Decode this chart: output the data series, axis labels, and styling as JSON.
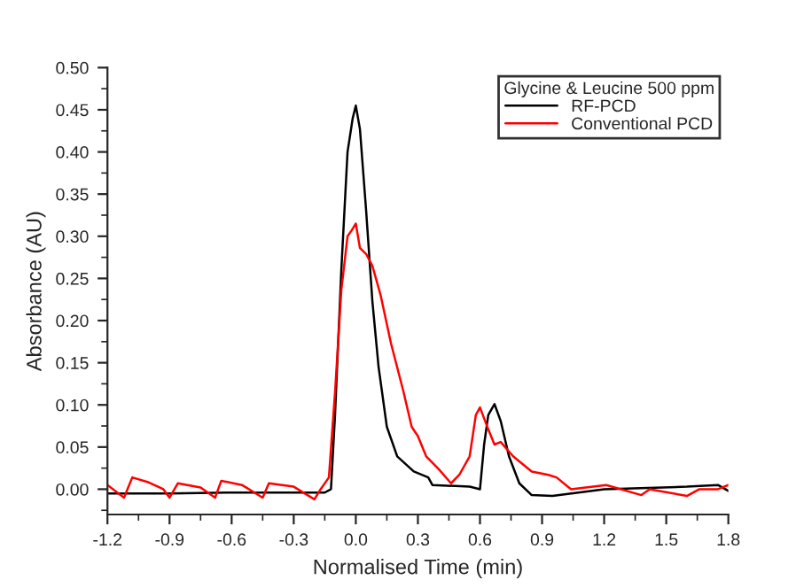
{
  "chart_data": {
    "type": "line",
    "xlabel": "Normalised Time (min)",
    "ylabel": "Absorbance (AU)",
    "legend_title": "Glycine & Leucine 500 ppm",
    "legend": "top right",
    "grid": false,
    "xlim": [
      -1.2,
      1.8
    ],
    "ylim": [
      -0.03,
      0.5
    ],
    "xticks": [
      {
        "value": -1.2,
        "label": "-1.2"
      },
      {
        "value": -0.9,
        "label": "-0.9"
      },
      {
        "value": -0.6,
        "label": "-0.6"
      },
      {
        "value": -0.3,
        "label": "-0.3"
      },
      {
        "value": 0,
        "label": "0.0"
      },
      {
        "value": 0.3,
        "label": "0.3"
      },
      {
        "value": 0.6,
        "label": "0.6"
      },
      {
        "value": 0.9,
        "label": "0.9"
      },
      {
        "value": 1.2,
        "label": "1.2"
      },
      {
        "value": 1.5,
        "label": "1.5"
      },
      {
        "value": 1.8,
        "label": "1.8"
      }
    ],
    "yticks": [
      {
        "value": 0,
        "label": "0.00"
      },
      {
        "value": 0.05,
        "label": "0.05"
      },
      {
        "value": 0.1,
        "label": "0.10"
      },
      {
        "value": 0.15,
        "label": "0.15"
      },
      {
        "value": 0.2,
        "label": "0.20"
      },
      {
        "value": 0.25,
        "label": "0.25"
      },
      {
        "value": 0.3,
        "label": "0.30"
      },
      {
        "value": 0.35,
        "label": "0.35"
      },
      {
        "value": 0.4,
        "label": "0.40"
      },
      {
        "value": 0.45,
        "label": "0.45"
      },
      {
        "value": 0.5,
        "label": "0.50"
      }
    ],
    "series": [
      {
        "name": "RF-PCD",
        "color": "#000000",
        "x": [
          -1.2,
          -0.9,
          -0.6,
          -0.3,
          -0.15,
          -0.12,
          -0.1,
          -0.07,
          -0.04,
          -0.015,
          0.0,
          0.02,
          0.05,
          0.08,
          0.11,
          0.15,
          0.2,
          0.28,
          0.35,
          0.37,
          0.55,
          0.6,
          0.62,
          0.64,
          0.67,
          0.7,
          0.74,
          0.79,
          0.85,
          0.95,
          1.2,
          1.6,
          1.75,
          1.8
        ],
        "values": [
          -0.005,
          -0.005,
          -0.004,
          -0.004,
          -0.004,
          0.0,
          0.09,
          0.26,
          0.4,
          0.44,
          0.455,
          0.427,
          0.33,
          0.223,
          0.145,
          0.074,
          0.039,
          0.021,
          0.014,
          0.005,
          0.003,
          0.0,
          0.053,
          0.088,
          0.101,
          0.081,
          0.039,
          0.007,
          -0.007,
          -0.008,
          0.0,
          0.003,
          0.005,
          -0.002
        ]
      },
      {
        "name": "Conventional PCD",
        "color": "#ff0000",
        "x": [
          -1.2,
          -1.12,
          -1.08,
          -1.0,
          -0.93,
          -0.9,
          -0.86,
          -0.75,
          -0.68,
          -0.65,
          -0.55,
          -0.45,
          -0.42,
          -0.3,
          -0.2,
          -0.17,
          -0.13,
          -0.1,
          -0.07,
          -0.04,
          -0.02,
          0.0,
          0.02,
          0.05,
          0.08,
          0.12,
          0.17,
          0.23,
          0.27,
          0.3,
          0.34,
          0.4,
          0.46,
          0.5,
          0.55,
          0.58,
          0.6,
          0.64,
          0.67,
          0.7,
          0.76,
          0.85,
          0.93,
          0.97,
          1.04,
          1.21,
          1.38,
          1.42,
          1.6,
          1.66,
          1.75,
          1.8
        ],
        "values": [
          0.005,
          -0.01,
          0.014,
          0.008,
          0.0,
          -0.01,
          0.007,
          0.002,
          -0.01,
          0.01,
          0.005,
          -0.01,
          0.007,
          0.003,
          -0.012,
          0.0,
          0.014,
          0.116,
          0.236,
          0.3,
          0.307,
          0.315,
          0.286,
          0.279,
          0.265,
          0.23,
          0.173,
          0.116,
          0.074,
          0.063,
          0.039,
          0.024,
          0.007,
          0.017,
          0.039,
          0.088,
          0.097,
          0.071,
          0.053,
          0.056,
          0.039,
          0.021,
          0.017,
          0.014,
          0.0,
          0.005,
          -0.007,
          0.0,
          -0.008,
          0.0,
          0.0,
          0.005
        ]
      }
    ]
  }
}
